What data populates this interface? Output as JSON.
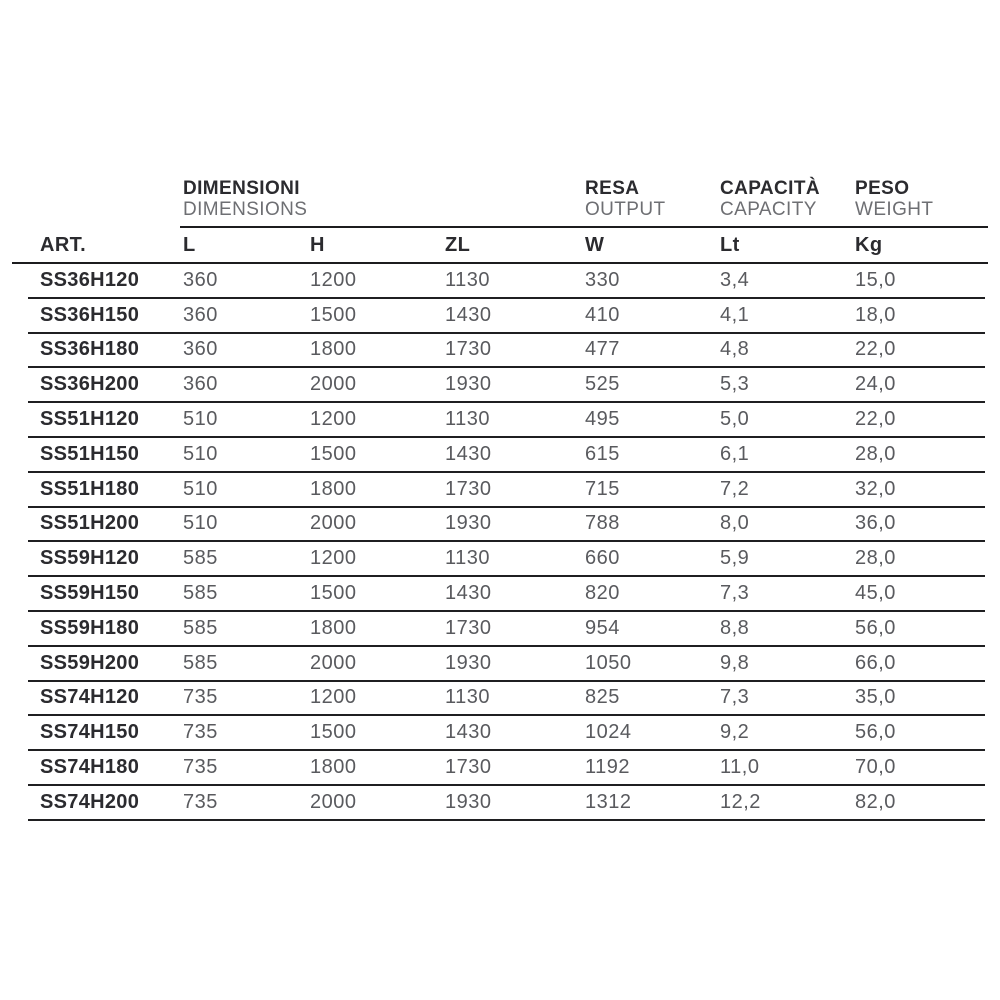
{
  "table": {
    "groups": [
      {
        "primary": "DIMENSIONI",
        "secondary": "DIMENSIONS"
      },
      {
        "primary": "RESA",
        "secondary": "OUTPUT"
      },
      {
        "primary": "CAPACITÀ",
        "secondary": "CAPACITY"
      },
      {
        "primary": "PESO",
        "secondary": "WEIGHT"
      }
    ],
    "columns": [
      "ART.",
      "L",
      "H",
      "ZL",
      "W",
      "Lt",
      "Kg"
    ],
    "rows": [
      {
        "art": "SS36H120",
        "l": "360",
        "h": "1200",
        "zl": "1130",
        "w": "330",
        "lt": "3,4",
        "kg": "15,0"
      },
      {
        "art": "SS36H150",
        "l": "360",
        "h": "1500",
        "zl": "1430",
        "w": "410",
        "lt": "4,1",
        "kg": "18,0"
      },
      {
        "art": "SS36H180",
        "l": "360",
        "h": "1800",
        "zl": "1730",
        "w": "477",
        "lt": "4,8",
        "kg": "22,0"
      },
      {
        "art": "SS36H200",
        "l": "360",
        "h": "2000",
        "zl": "1930",
        "w": "525",
        "lt": "5,3",
        "kg": "24,0"
      },
      {
        "art": "SS51H120",
        "l": "510",
        "h": "1200",
        "zl": "1130",
        "w": "495",
        "lt": "5,0",
        "kg": "22,0"
      },
      {
        "art": "SS51H150",
        "l": "510",
        "h": "1500",
        "zl": "1430",
        "w": "615",
        "lt": "6,1",
        "kg": "28,0"
      },
      {
        "art": "SS51H180",
        "l": "510",
        "h": "1800",
        "zl": "1730",
        "w": "715",
        "lt": "7,2",
        "kg": "32,0"
      },
      {
        "art": "SS51H200",
        "l": "510",
        "h": "2000",
        "zl": "1930",
        "w": "788",
        "lt": "8,0",
        "kg": "36,0"
      },
      {
        "art": "SS59H120",
        "l": "585",
        "h": "1200",
        "zl": "1130",
        "w": "660",
        "lt": "5,9",
        "kg": "28,0"
      },
      {
        "art": "SS59H150",
        "l": "585",
        "h": "1500",
        "zl": "1430",
        "w": "820",
        "lt": "7,3",
        "kg": "45,0"
      },
      {
        "art": "SS59H180",
        "l": "585",
        "h": "1800",
        "zl": "1730",
        "w": "954",
        "lt": "8,8",
        "kg": "56,0"
      },
      {
        "art": "SS59H200",
        "l": "585",
        "h": "2000",
        "zl": "1930",
        "w": "1050",
        "lt": "9,8",
        "kg": "66,0"
      },
      {
        "art": "SS74H120",
        "l": "735",
        "h": "1200",
        "zl": "1130",
        "w": "825",
        "lt": "7,3",
        "kg": "35,0"
      },
      {
        "art": "SS74H150",
        "l": "735",
        "h": "1500",
        "zl": "1430",
        "w": "1024",
        "lt": "9,2",
        "kg": "56,0"
      },
      {
        "art": "SS74H180",
        "l": "735",
        "h": "1800",
        "zl": "1730",
        "w": "1192",
        "lt": "11,0",
        "kg": "70,0"
      },
      {
        "art": "SS74H200",
        "l": "735",
        "h": "2000",
        "zl": "1930",
        "w": "1312",
        "lt": "12,2",
        "kg": "82,0"
      }
    ]
  },
  "colors": {
    "text_dark": "#2b2b2f",
    "text_gray": "#595a5e",
    "rule": "#1c1c1e",
    "background": "#ffffff"
  }
}
